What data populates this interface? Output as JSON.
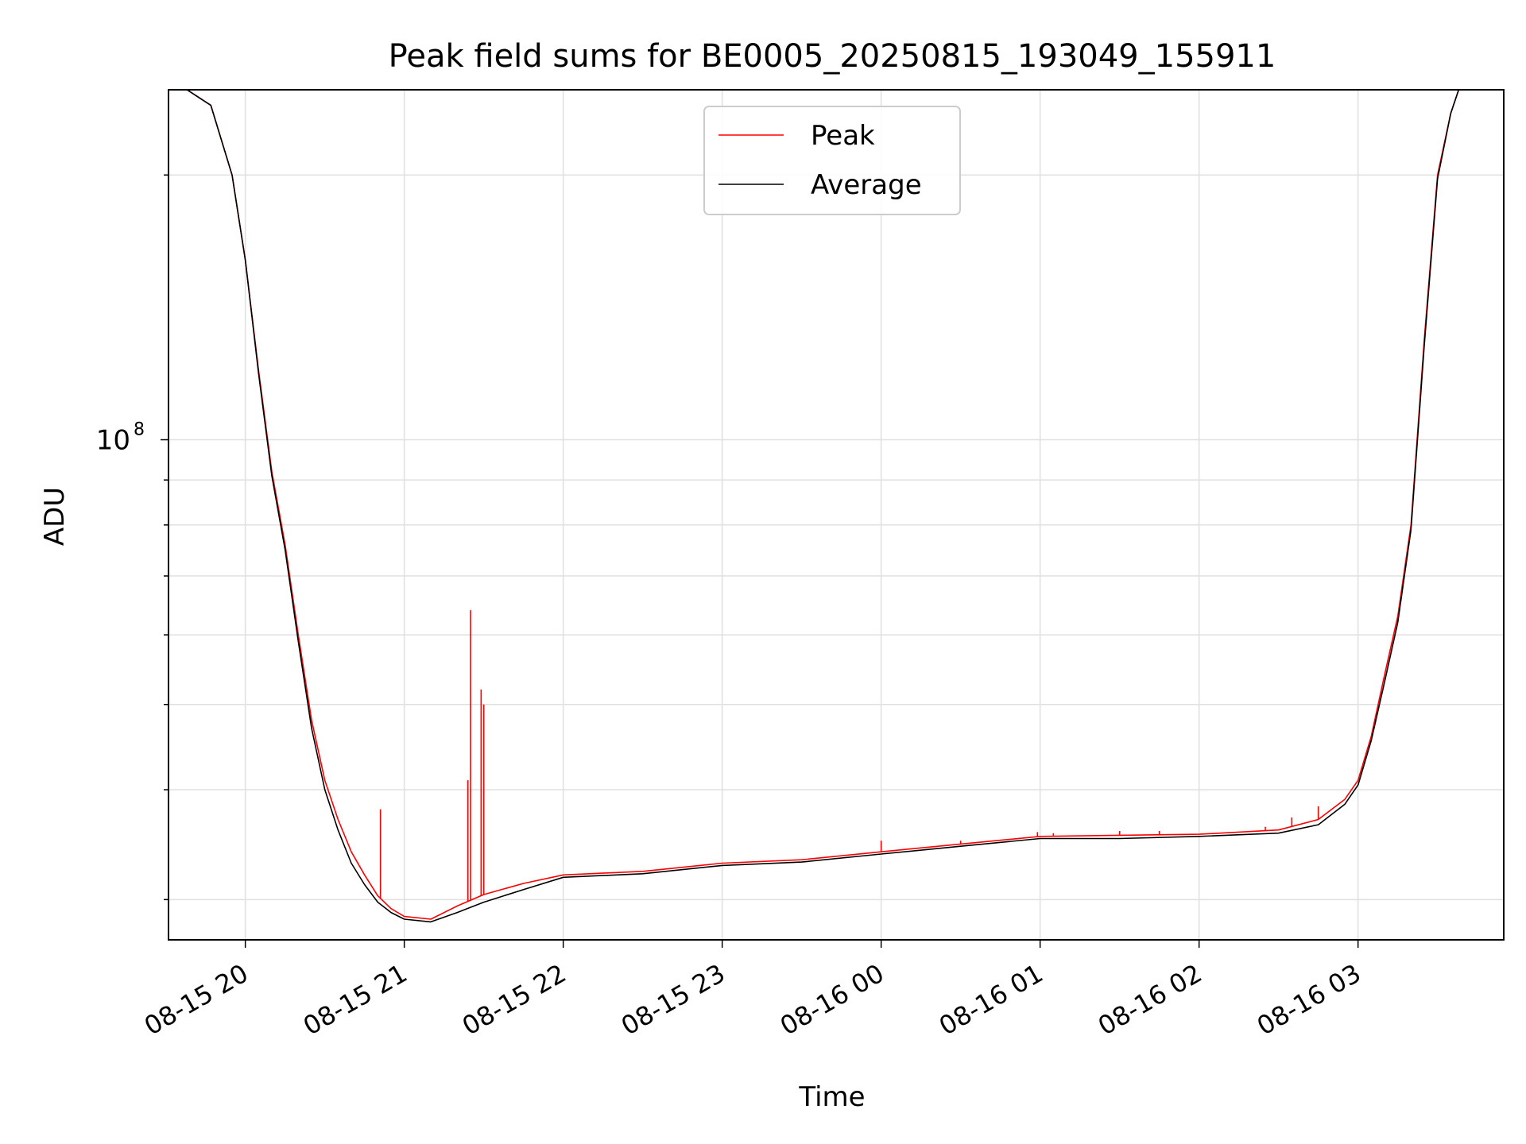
{
  "chart_data": {
    "type": "line",
    "title": "Peak field sums for BE0005_20250815_193049_155911",
    "xlabel": "Time",
    "ylabel": "ADU",
    "yscale": "log",
    "ylim": [
      27000000,
      250000000
    ],
    "y_tick_label": "10",
    "y_tick_label_exp": "8",
    "x_ticks": [
      "08-15 20",
      "08-15 21",
      "08-15 22",
      "08-15 23",
      "08-16 00",
      "08-16 01",
      "08-16 02",
      "08-16 03"
    ],
    "x_tick_values": [
      "2025-08-15 20:00",
      "2025-08-15 21:00",
      "2025-08-15 22:00",
      "2025-08-15 23:00",
      "2025-08-16 00:00",
      "2025-08-16 01:00",
      "2025-08-16 02:00",
      "2025-08-16 03:00"
    ],
    "xlim": [
      "2025-08-15 19:31",
      "2025-08-16 03:55"
    ],
    "grid": true,
    "legend_position": "top-center",
    "series": [
      {
        "name": "Peak",
        "color": "#ff0000",
        "x": [
          "2025-08-15 19:38",
          "2025-08-15 19:47",
          "2025-08-15 19:55",
          "2025-08-15 20:00",
          "2025-08-15 20:05",
          "2025-08-15 20:10",
          "2025-08-15 20:15",
          "2025-08-15 20:20",
          "2025-08-15 20:25",
          "2025-08-15 20:30",
          "2025-08-15 20:35",
          "2025-08-15 20:40",
          "2025-08-15 20:45",
          "2025-08-15 20:50",
          "2025-08-15 20:55",
          "2025-08-15 21:00",
          "2025-08-15 21:10",
          "2025-08-15 21:20",
          "2025-08-15 21:30",
          "2025-08-15 21:45",
          "2025-08-15 22:00",
          "2025-08-15 22:30",
          "2025-08-15 23:00",
          "2025-08-15 23:30",
          "2025-08-16 00:00",
          "2025-08-16 00:30",
          "2025-08-16 01:00",
          "2025-08-16 01:30",
          "2025-08-16 02:00",
          "2025-08-16 02:30",
          "2025-08-16 02:45",
          "2025-08-16 02:55",
          "2025-08-16 03:00",
          "2025-08-16 03:05",
          "2025-08-16 03:10",
          "2025-08-16 03:15",
          "2025-08-16 03:20",
          "2025-08-16 03:25",
          "2025-08-16 03:30",
          "2025-08-16 03:35",
          "2025-08-16 03:38"
        ],
        "values": [
          250000000,
          240000000,
          200000000,
          160000000,
          120000000,
          92000000,
          76000000,
          60000000,
          48000000,
          41000000,
          37000000,
          34000000,
          32000000,
          30300000,
          29300000,
          28700000,
          28500000,
          29500000,
          30400000,
          31300000,
          32000000,
          32300000,
          33000000,
          33300000,
          34000000,
          34700000,
          35400000,
          35500000,
          35600000,
          36000000,
          37000000,
          39000000,
          41000000,
          46000000,
          54000000,
          63000000,
          80000000,
          130000000,
          200000000,
          235000000,
          250000000
        ],
        "spikes": [
          {
            "x": "2025-08-15 20:51",
            "value": 38000000
          },
          {
            "x": "2025-08-15 21:25",
            "value": 64000000
          },
          {
            "x": "2025-08-15 21:29",
            "value": 52000000
          },
          {
            "x": "2025-08-15 21:30",
            "value": 50000000
          },
          {
            "x": "2025-08-15 21:24",
            "value": 41000000
          },
          {
            "x": "2025-08-16 00:00",
            "value": 35000000
          },
          {
            "x": "2025-08-16 00:30",
            "value": 35000000
          },
          {
            "x": "2025-08-16 00:35",
            "value": 34800000
          },
          {
            "x": "2025-08-16 00:59",
            "value": 35800000
          },
          {
            "x": "2025-08-16 01:05",
            "value": 35700000
          },
          {
            "x": "2025-08-16 01:30",
            "value": 35900000
          },
          {
            "x": "2025-08-16 01:45",
            "value": 35900000
          },
          {
            "x": "2025-08-16 02:25",
            "value": 36300000
          },
          {
            "x": "2025-08-16 02:35",
            "value": 37200000
          },
          {
            "x": "2025-08-16 02:45",
            "value": 38300000
          }
        ]
      },
      {
        "name": "Average",
        "color": "#000000",
        "x": [
          "2025-08-15 19:38",
          "2025-08-15 19:47",
          "2025-08-15 19:55",
          "2025-08-15 20:00",
          "2025-08-15 20:05",
          "2025-08-15 20:10",
          "2025-08-15 20:15",
          "2025-08-15 20:20",
          "2025-08-15 20:25",
          "2025-08-15 20:30",
          "2025-08-15 20:35",
          "2025-08-15 20:40",
          "2025-08-15 20:45",
          "2025-08-15 20:50",
          "2025-08-15 20:55",
          "2025-08-15 21:00",
          "2025-08-15 21:10",
          "2025-08-15 21:20",
          "2025-08-15 21:30",
          "2025-08-15 21:45",
          "2025-08-15 22:00",
          "2025-08-15 22:30",
          "2025-08-15 23:00",
          "2025-08-15 23:30",
          "2025-08-16 00:00",
          "2025-08-16 00:30",
          "2025-08-16 01:00",
          "2025-08-16 01:30",
          "2025-08-16 02:00",
          "2025-08-16 02:30",
          "2025-08-16 02:45",
          "2025-08-16 02:55",
          "2025-08-16 03:00",
          "2025-08-16 03:05",
          "2025-08-16 03:10",
          "2025-08-16 03:15",
          "2025-08-16 03:20",
          "2025-08-16 03:25",
          "2025-08-16 03:30",
          "2025-08-16 03:35",
          "2025-08-16 03:38"
        ],
        "values": [
          250000000,
          240000000,
          200000000,
          160000000,
          119000000,
          91000000,
          75000000,
          59000000,
          47000000,
          40000000,
          36000000,
          33000000,
          31200000,
          29800000,
          29000000,
          28500000,
          28300000,
          29000000,
          29800000,
          30800000,
          31800000,
          32100000,
          32800000,
          33100000,
          33800000,
          34500000,
          35200000,
          35200000,
          35400000,
          35700000,
          36500000,
          38500000,
          40500000,
          45500000,
          53000000,
          62000000,
          79000000,
          128000000,
          198000000,
          235000000,
          250000000
        ]
      }
    ]
  }
}
